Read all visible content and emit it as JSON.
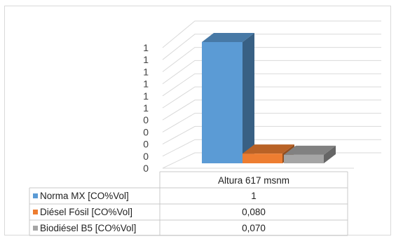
{
  "chart_data": {
    "type": "bar",
    "three_d": true,
    "categories": [
      "Altura 617 msnm"
    ],
    "series": [
      {
        "name": "Norma MX [CO%Vol]",
        "color": "#5b9bd5",
        "values": [
          1
        ],
        "value_labels": [
          "1"
        ]
      },
      {
        "name": "Diésel Fósil [CO%Vol]",
        "color": "#ed7d31",
        "values": [
          0.08
        ],
        "value_labels": [
          "0,080"
        ]
      },
      {
        "name": "Biodiésel B5 [CO%Vol]",
        "color": "#a5a5a5",
        "values": [
          0.07
        ],
        "value_labels": [
          "0,070"
        ]
      }
    ],
    "y_tick_labels": [
      "0",
      "0",
      "0",
      "0",
      "0",
      "1",
      "1",
      "1",
      "1",
      "1",
      "1"
    ],
    "ylim": [
      0,
      1.1
    ],
    "grid": true,
    "legend": "data-table"
  }
}
